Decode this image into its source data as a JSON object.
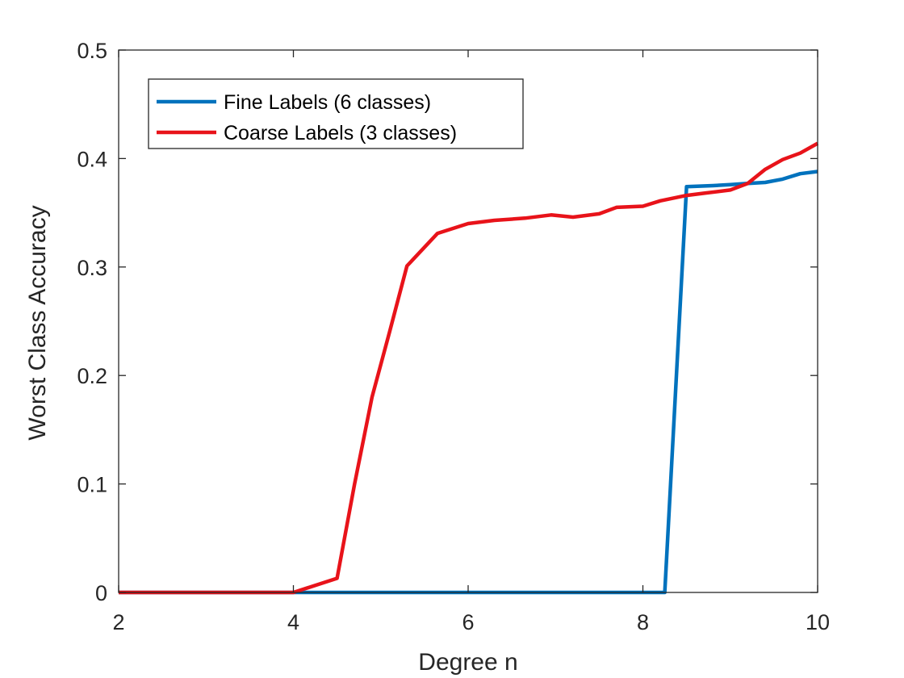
{
  "chart_data": {
    "type": "line",
    "xlabel": "Degree n",
    "ylabel": "Worst Class Accuracy",
    "xlim": [
      2,
      10
    ],
    "ylim": [
      0,
      0.5
    ],
    "xticks": [
      2,
      4,
      6,
      8,
      10
    ],
    "yticks": [
      0,
      0.1,
      0.2,
      0.3,
      0.4,
      0.5
    ],
    "xtick_labels": [
      "2",
      "4",
      "6",
      "8",
      "10"
    ],
    "ytick_labels": [
      "0",
      "0.1",
      "0.2",
      "0.3",
      "0.4",
      "0.5"
    ],
    "grid": false,
    "legend_position": "top-left",
    "series": [
      {
        "name": "Fine Labels (6 classes)",
        "color": "#0072bd",
        "x": [
          2,
          4,
          8.25,
          8.5,
          8.8,
          9.0,
          9.2,
          9.4,
          9.6,
          9.8,
          10
        ],
        "y": [
          0,
          0,
          0,
          0.374,
          0.375,
          0.376,
          0.377,
          0.378,
          0.381,
          0.386,
          0.388
        ]
      },
      {
        "name": "Coarse Labels (3 classes)",
        "color": "#e8131a",
        "x": [
          2,
          4,
          4.5,
          4.7,
          4.9,
          5.1,
          5.3,
          5.65,
          6.0,
          6.3,
          6.65,
          6.95,
          7.2,
          7.5,
          7.7,
          8.0,
          8.2,
          8.5,
          8.7,
          9.0,
          9.2,
          9.4,
          9.6,
          9.8,
          10
        ],
        "y": [
          0,
          0,
          0.013,
          0.1,
          0.18,
          0.24,
          0.301,
          0.331,
          0.34,
          0.343,
          0.345,
          0.348,
          0.346,
          0.349,
          0.355,
          0.356,
          0.361,
          0.366,
          0.368,
          0.371,
          0.377,
          0.39,
          0.399,
          0.405,
          0.414
        ]
      }
    ]
  }
}
